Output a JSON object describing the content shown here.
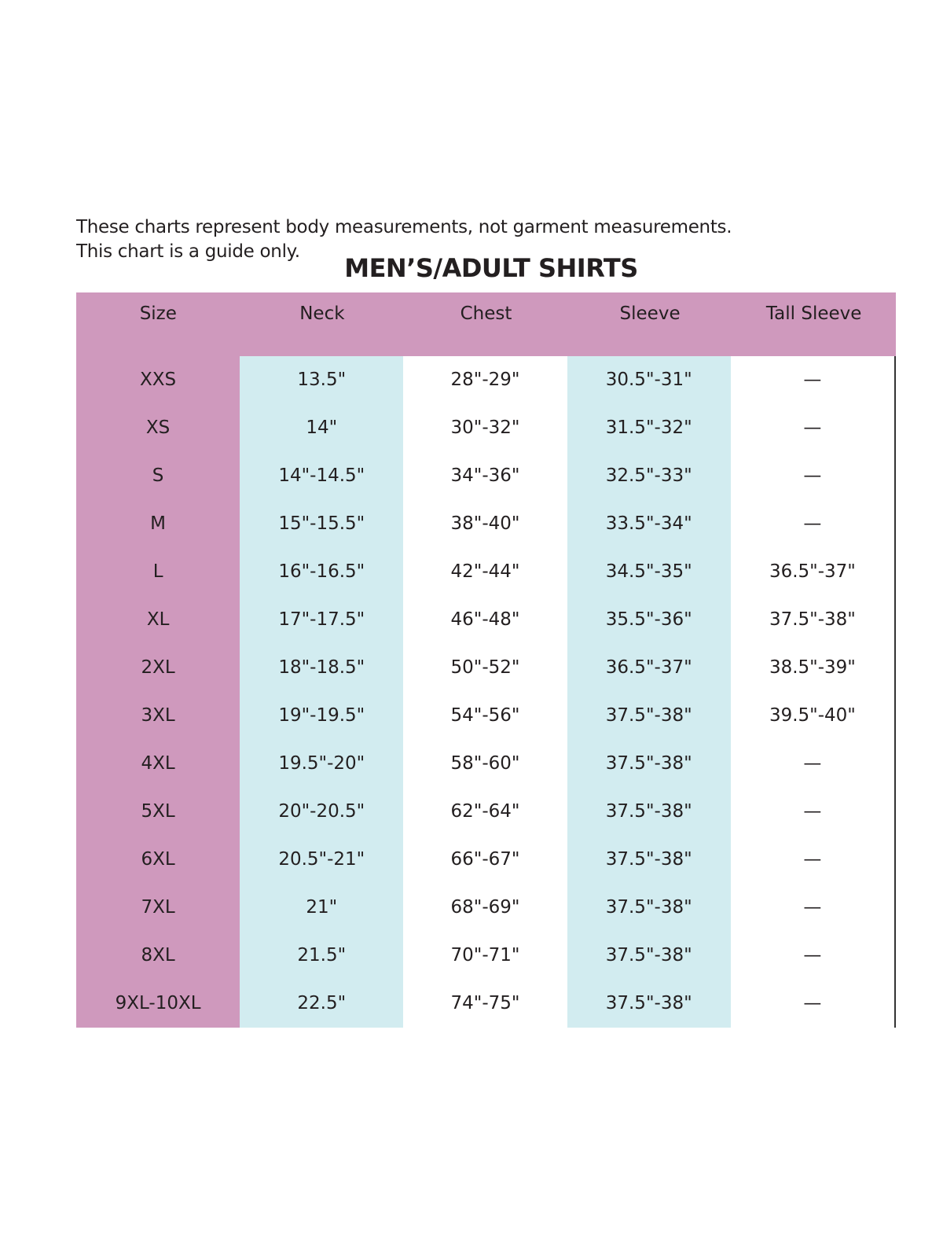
{
  "note": [
    "These charts represent body measurements, not garment measurements.",
    "This chart is a guide only."
  ],
  "title": "MEN’S/ADULT SHIRTS",
  "colors": {
    "size_column": "#cf99bd",
    "alt_column": "#d2ecf0"
  },
  "columns": [
    "Size",
    "Neck",
    "Chest",
    "Sleeve",
    "Tall Sleeve"
  ],
  "rows": [
    [
      "XXS",
      "13.5\"",
      "28\"-29\"",
      "30.5\"-31\"",
      "—"
    ],
    [
      "XS",
      "14\"",
      "30\"-32\"",
      "31.5\"-32\"",
      "—"
    ],
    [
      "S",
      "14\"-14.5\"",
      "34\"-36\"",
      "32.5\"-33\"",
      "—"
    ],
    [
      "M",
      "15\"-15.5\"",
      "38\"-40\"",
      "33.5\"-34\"",
      "—"
    ],
    [
      "L",
      "16\"-16.5\"",
      "42\"-44\"",
      "34.5\"-35\"",
      "36.5\"-37\""
    ],
    [
      "XL",
      "17\"-17.5\"",
      "46\"-48\"",
      "35.5\"-36\"",
      "37.5\"-38\""
    ],
    [
      "2XL",
      "18\"-18.5\"",
      "50\"-52\"",
      "36.5\"-37\"",
      "38.5\"-39\""
    ],
    [
      "3XL",
      "19\"-19.5\"",
      "54\"-56\"",
      "37.5\"-38\"",
      "39.5\"-40\""
    ],
    [
      "4XL",
      "19.5\"-20\"",
      "58\"-60\"",
      "37.5\"-38\"",
      "—"
    ],
    [
      "5XL",
      "20\"-20.5\"",
      "62\"-64\"",
      "37.5\"-38\"",
      "—"
    ],
    [
      "6XL",
      "20.5\"-21\"",
      "66\"-67\"",
      "37.5\"-38\"",
      "—"
    ],
    [
      "7XL",
      "21\"",
      "68\"-69\"",
      "37.5\"-38\"",
      "—"
    ],
    [
      "8XL",
      "21.5\"",
      "70\"-71\"",
      "37.5\"-38\"",
      "—"
    ],
    [
      "9XL-10XL",
      "22.5\"",
      "74\"-75\"",
      "37.5\"-38\"",
      "—"
    ]
  ]
}
